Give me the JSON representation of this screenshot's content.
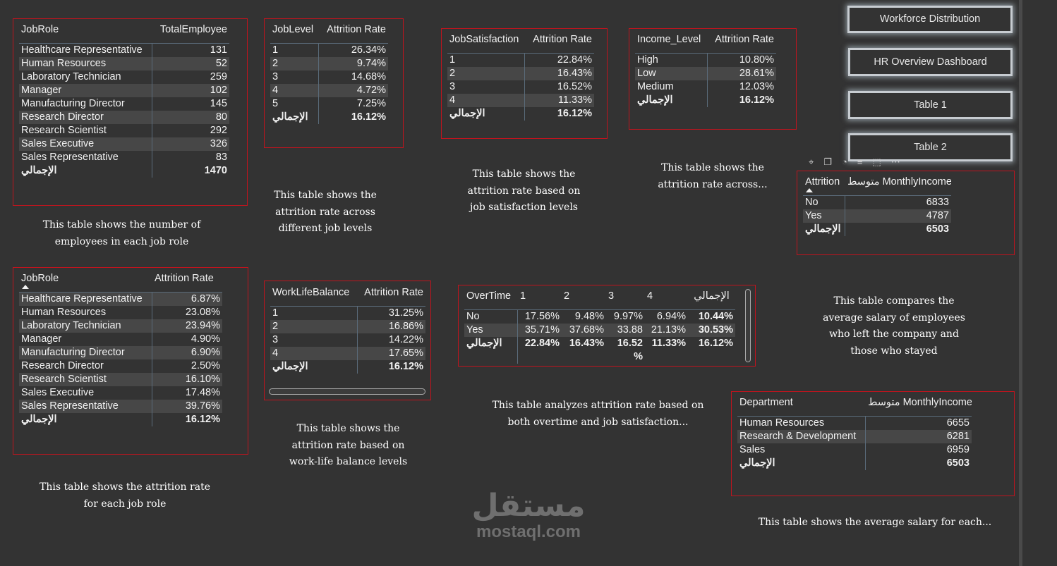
{
  "nav_buttons": [
    "Workforce Distribution",
    "HR Overview Dashboard",
    "Table 1",
    "Table 2"
  ],
  "toolbar_icons": [
    "pin-icon",
    "copy-icon",
    "bell-icon",
    "filter-icon",
    "expand-icon",
    "more-icon"
  ],
  "watermark": {
    "arabic": "مستقل",
    "latin": "mostaql.com"
  },
  "tables": {
    "jobrole_employees": {
      "headers": [
        "JobRole",
        "TotalEmployee"
      ],
      "rows": [
        [
          "Healthcare Representative",
          "131"
        ],
        [
          "Human Resources",
          "52"
        ],
        [
          "Laboratory Technician",
          "259"
        ],
        [
          "Manager",
          "102"
        ],
        [
          "Manufacturing Director",
          "145"
        ],
        [
          "Research Director",
          "80"
        ],
        [
          "Research Scientist",
          "292"
        ],
        [
          "Sales Executive",
          "326"
        ],
        [
          "Sales Representative",
          "83"
        ]
      ],
      "total": [
        "الإجمالي",
        "1470"
      ]
    },
    "joblevel_attrition": {
      "headers": [
        "JobLevel",
        "Attrition Rate"
      ],
      "rows": [
        [
          "1",
          "26.34%"
        ],
        [
          "2",
          "9.74%"
        ],
        [
          "3",
          "14.68%"
        ],
        [
          "4",
          "4.72%"
        ],
        [
          "5",
          "7.25%"
        ]
      ],
      "total": [
        "الإجمالي",
        "16.12%"
      ]
    },
    "jobsat_attrition": {
      "headers": [
        "JobSatisfaction",
        "Attrition Rate"
      ],
      "rows": [
        [
          "1",
          "22.84%"
        ],
        [
          "2",
          "16.43%"
        ],
        [
          "3",
          "16.52%"
        ],
        [
          "4",
          "11.33%"
        ]
      ],
      "total": [
        "الإجمالي",
        "16.12%"
      ]
    },
    "income_attrition": {
      "headers": [
        "Income_Level",
        "Attrition Rate"
      ],
      "rows": [
        [
          "High",
          "10.80%"
        ],
        [
          "Low",
          "28.61%"
        ],
        [
          "Medium",
          "12.03%"
        ]
      ],
      "total": [
        "الإجمالي",
        "16.12%"
      ]
    },
    "attrition_income": {
      "headers": [
        "Attrition",
        "متوسط MonthlyIncome"
      ],
      "rows": [
        [
          "No",
          "6833"
        ],
        [
          "Yes",
          "4787"
        ]
      ],
      "total": [
        "الإجمالي",
        "6503"
      ]
    },
    "jobrole_attrition": {
      "headers": [
        "JobRole",
        "Attrition Rate"
      ],
      "rows": [
        [
          "Healthcare Representative",
          "6.87%"
        ],
        [
          "Human Resources",
          "23.08%"
        ],
        [
          "Laboratory Technician",
          "23.94%"
        ],
        [
          "Manager",
          "4.90%"
        ],
        [
          "Manufacturing Director",
          "6.90%"
        ],
        [
          "Research Director",
          "2.50%"
        ],
        [
          "Research Scientist",
          "16.10%"
        ],
        [
          "Sales Executive",
          "17.48%"
        ],
        [
          "Sales Representative",
          "39.76%"
        ]
      ],
      "total": [
        "الإجمالي",
        "16.12%"
      ]
    },
    "worklife_attrition": {
      "headers": [
        "WorkLifeBalance",
        "Attrition Rate"
      ],
      "rows": [
        [
          "1",
          "31.25%"
        ],
        [
          "2",
          "16.86%"
        ],
        [
          "3",
          "14.22%"
        ],
        [
          "4",
          "17.65%"
        ]
      ],
      "total": [
        "الإجمالي",
        "16.12%"
      ]
    },
    "overtime_matrix": {
      "headers": [
        "OverTime",
        "1",
        "2",
        "3",
        "4",
        "الإجمالي"
      ],
      "rows": [
        [
          "No",
          "17.56%",
          "9.48%",
          "9.97%",
          "6.94%",
          "10.44%"
        ],
        [
          "Yes",
          "35.71%",
          "37.68%",
          "33.88",
          "21.13%",
          "30.53%"
        ]
      ],
      "total": [
        "الإجمالي",
        "22.84%",
        "16.43%",
        "16.52 %",
        "11.33%",
        "16.12%"
      ]
    },
    "department_income": {
      "headers": [
        "Department",
        "متوسط MonthlyIncome"
      ],
      "rows": [
        [
          "Human Resources",
          "6655"
        ],
        [
          "Research & Development",
          "6281"
        ],
        [
          "Sales",
          "6959"
        ]
      ],
      "total": [
        "الإجمالي",
        "6503"
      ]
    }
  },
  "notes": {
    "jobrole_employees": "This table shows the number of employees in each job role",
    "joblevel_attrition": "This table shows the attrition rate across different job levels",
    "jobsat_attrition": "This table shows the attrition rate based on job satisfaction levels",
    "income_attrition": "This table shows the attrition rate across...",
    "attrition_income": "This table compares the average salary of employees who left the company and those who stayed",
    "jobrole_attrition": "This table shows the attrition rate for each job role",
    "worklife_attrition": "This table shows the attrition rate based on work-life balance levels",
    "overtime_matrix": "This table analyzes attrition rate based on both overtime and job satisfaction...",
    "department_income": "This table shows the average salary for each..."
  }
}
